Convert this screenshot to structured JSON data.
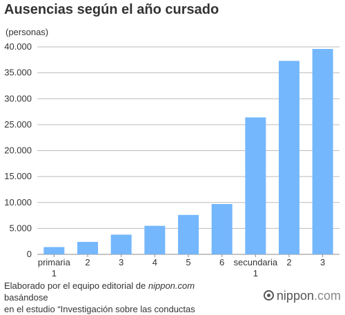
{
  "chart_data": {
    "type": "bar",
    "title": "Ausencias según el año cursado",
    "unit_label": "(personas)",
    "categories": [
      [
        "primaria",
        "1"
      ],
      [
        "2"
      ],
      [
        "3"
      ],
      [
        "4"
      ],
      [
        "5"
      ],
      [
        "6"
      ],
      [
        "secundaria",
        "1"
      ],
      [
        "2"
      ],
      [
        "3"
      ]
    ],
    "values": [
      1400,
      2400,
      3800,
      5500,
      7600,
      9700,
      26400,
      37300,
      39600
    ],
    "ylim": [
      0,
      40000
    ],
    "yticks": [
      0,
      5000,
      10000,
      15000,
      20000,
      25000,
      30000,
      35000,
      40000
    ],
    "ytick_labels": [
      "0",
      "5.000",
      "10.000",
      "15.000",
      "20.000",
      "25.000",
      "30.000",
      "35.000",
      "40.000"
    ],
    "bar_color": "#74b7fd",
    "grid": true
  },
  "footer": {
    "prefix": "Elaborado por el equipo editorial de ",
    "site": "nippon.com",
    "suffix": " basándose",
    "line2": "en el estudio “Investigación sobre las conductas"
  },
  "logo": {
    "name": "nippon",
    "suffix": ".com"
  }
}
